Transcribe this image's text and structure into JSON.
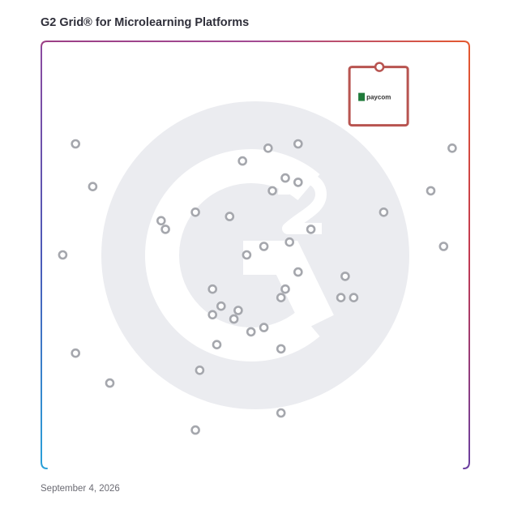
{
  "title": "G2 Grid® for Microlearning Platforms",
  "date": "September 4, 2026",
  "highlight": {
    "label": "paycom",
    "color": "#b85450",
    "logo_color": "#1f7a3a"
  },
  "chart_data": {
    "type": "scatter",
    "title": "G2 Grid® for Microlearning Platforms",
    "xlim": [
      0,
      100
    ],
    "ylim": [
      0,
      100
    ],
    "grid": true,
    "quadrant_dividers": {
      "x": 50,
      "y": 50
    },
    "marker_color": "#a5a7ad",
    "frame_colors": {
      "top_left": "#9b3f86",
      "top_right": "#e4582f",
      "bottom_left": "#2aa1d9",
      "bottom_right": "#6b3fa0"
    },
    "highlight_point": {
      "label": "paycom",
      "x": 79,
      "y": 94
    },
    "points": [
      {
        "x": 8,
        "y": 76
      },
      {
        "x": 12,
        "y": 66
      },
      {
        "x": 5,
        "y": 50
      },
      {
        "x": 8,
        "y": 27
      },
      {
        "x": 16,
        "y": 20
      },
      {
        "x": 28,
        "y": 58
      },
      {
        "x": 29,
        "y": 56
      },
      {
        "x": 36,
        "y": 60
      },
      {
        "x": 44,
        "y": 59
      },
      {
        "x": 47,
        "y": 72
      },
      {
        "x": 53,
        "y": 75
      },
      {
        "x": 60,
        "y": 76
      },
      {
        "x": 57,
        "y": 68
      },
      {
        "x": 60,
        "y": 67
      },
      {
        "x": 54,
        "y": 65
      },
      {
        "x": 63,
        "y": 56
      },
      {
        "x": 58,
        "y": 53
      },
      {
        "x": 52,
        "y": 52
      },
      {
        "x": 48,
        "y": 50
      },
      {
        "x": 60,
        "y": 46
      },
      {
        "x": 57,
        "y": 42
      },
      {
        "x": 56,
        "y": 40
      },
      {
        "x": 70,
        "y": 40
      },
      {
        "x": 71,
        "y": 45
      },
      {
        "x": 73,
        "y": 40
      },
      {
        "x": 80,
        "y": 60
      },
      {
        "x": 91,
        "y": 65
      },
      {
        "x": 96,
        "y": 75
      },
      {
        "x": 94,
        "y": 52
      },
      {
        "x": 40,
        "y": 42
      },
      {
        "x": 42,
        "y": 38
      },
      {
        "x": 40,
        "y": 36
      },
      {
        "x": 46,
        "y": 37
      },
      {
        "x": 45,
        "y": 35
      },
      {
        "x": 49,
        "y": 32
      },
      {
        "x": 52,
        "y": 33
      },
      {
        "x": 41,
        "y": 29
      },
      {
        "x": 56,
        "y": 28
      },
      {
        "x": 37,
        "y": 23
      },
      {
        "x": 56,
        "y": 13
      },
      {
        "x": 36,
        "y": 9
      }
    ]
  }
}
